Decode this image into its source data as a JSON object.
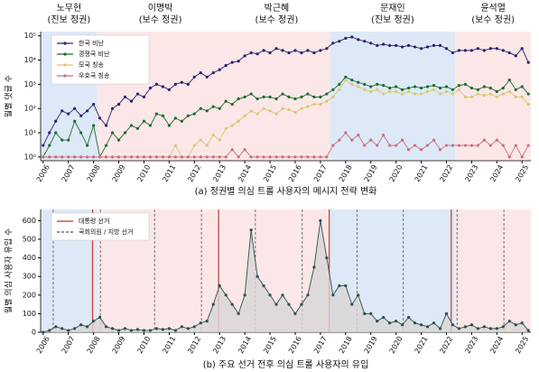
{
  "chart_data": [
    {
      "type": "line",
      "log_y": true,
      "caption": "(a) 정권별 의심 트롤 사용자의 메시지 전략 변화",
      "ylabel": "월별 댓글 수",
      "xlim": [
        2005.9,
        2025.35
      ],
      "xticks": [
        2006,
        2007,
        2008,
        2009,
        2010,
        2011,
        2012,
        2013,
        2014,
        2015,
        2016,
        2017,
        2018,
        2019,
        2020,
        2021,
        2022,
        2023,
        2024,
        2025
      ],
      "ylim": [
        0.7,
        150000
      ],
      "yticks": [
        {
          "value": 1,
          "label": "10⁰"
        },
        {
          "value": 10,
          "label": "10¹"
        },
        {
          "value": 100,
          "label": "10²"
        },
        {
          "value": 1000,
          "label": "10³"
        },
        {
          "value": 10000,
          "label": "10⁴"
        },
        {
          "value": 100000,
          "label": "10⁵"
        }
      ],
      "legend": "upper left",
      "eras": [
        {
          "name": "노무현",
          "party": "(진보 정권)",
          "start": 2005.9,
          "end": 2008.15,
          "color": "#dde9f6"
        },
        {
          "name": "이명박",
          "party": "(보수 정권)",
          "start": 2008.15,
          "end": 2013.15,
          "color": "#fbe7e7"
        },
        {
          "name": "박근혜",
          "party": "(보수 정권)",
          "start": 2013.15,
          "end": 2017.38,
          "color": "#fbe7e7"
        },
        {
          "name": "문재인",
          "party": "(진보 정권)",
          "start": 2017.38,
          "end": 2022.35,
          "color": "#dde9f6"
        },
        {
          "name": "윤석열",
          "party": "(보수 정권)",
          "start": 2022.35,
          "end": 2025.35,
          "color": "#fbe7e7"
        }
      ],
      "x": [
        2006,
        2006.25,
        2006.5,
        2006.75,
        2007,
        2007.25,
        2007.5,
        2007.75,
        2008,
        2008.25,
        2008.5,
        2008.75,
        2009,
        2009.25,
        2009.5,
        2009.75,
        2010,
        2010.25,
        2010.5,
        2010.75,
        2011,
        2011.25,
        2011.5,
        2011.75,
        2012,
        2012.25,
        2012.5,
        2012.75,
        2013,
        2013.25,
        2013.5,
        2013.75,
        2014,
        2014.25,
        2014.5,
        2014.75,
        2015,
        2015.25,
        2015.5,
        2015.75,
        2016,
        2016.25,
        2016.5,
        2016.75,
        2017,
        2017.25,
        2017.5,
        2017.75,
        2018,
        2018.25,
        2018.5,
        2018.75,
        2019,
        2019.25,
        2019.5,
        2019.75,
        2020,
        2020.25,
        2020.5,
        2020.75,
        2021,
        2021.25,
        2021.5,
        2021.75,
        2022,
        2022.25,
        2022.5,
        2022.75,
        2023,
        2023.25,
        2023.5,
        2023.75,
        2024,
        2024.25,
        2024.5,
        2024.75,
        2025,
        2025.25
      ],
      "series": [
        {
          "name": "한국 비난",
          "color": "#2b2170",
          "values": [
            3,
            10,
            30,
            80,
            60,
            100,
            50,
            80,
            150,
            40,
            20,
            100,
            150,
            300,
            200,
            400,
            300,
            700,
            1000,
            800,
            600,
            1000,
            1200,
            1000,
            2000,
            3000,
            2000,
            3000,
            4000,
            6000,
            8000,
            9000,
            15000,
            20000,
            18000,
            25000,
            20000,
            30000,
            25000,
            20000,
            25000,
            20000,
            25000,
            20000,
            25000,
            30000,
            50000,
            60000,
            80000,
            90000,
            70000,
            60000,
            50000,
            40000,
            45000,
            40000,
            40000,
            35000,
            40000,
            35000,
            30000,
            35000,
            40000,
            40000,
            30000,
            20000,
            25000,
            25000,
            25000,
            30000,
            25000,
            30000,
            30000,
            25000,
            20000,
            15000,
            30000,
            8000
          ]
        },
        {
          "name": "경쟁국 비난",
          "color": "#1f6b30",
          "values": [
            1,
            3,
            10,
            5,
            5,
            30,
            10,
            3,
            20,
            1,
            3,
            10,
            5,
            10,
            20,
            15,
            30,
            20,
            60,
            50,
            20,
            40,
            30,
            50,
            60,
            100,
            80,
            120,
            100,
            200,
            150,
            250,
            300,
            400,
            250,
            300,
            300,
            250,
            400,
            300,
            250,
            300,
            400,
            300,
            300,
            400,
            600,
            1000,
            2000,
            1500,
            1200,
            1000,
            800,
            1000,
            900,
            700,
            800,
            600,
            700,
            800,
            700,
            800,
            900,
            700,
            800,
            600,
            900,
            1000,
            700,
            600,
            800,
            700,
            500,
            700,
            1500,
            600,
            800,
            400
          ]
        },
        {
          "name": "모국 칭송",
          "color": "#d9c873",
          "values": [
            1,
            1,
            1,
            1,
            1,
            1,
            1,
            1,
            1,
            1,
            1,
            1,
            1,
            1,
            1,
            1,
            1,
            1,
            1,
            1,
            1,
            3,
            1,
            1,
            3,
            5,
            3,
            8,
            5,
            15,
            20,
            30,
            50,
            80,
            60,
            100,
            80,
            60,
            100,
            90,
            70,
            100,
            120,
            150,
            150,
            200,
            300,
            600,
            1500,
            1000,
            800,
            600,
            500,
            600,
            400,
            500,
            500,
            400,
            500,
            400,
            400,
            500,
            600,
            400,
            500,
            400,
            600,
            300,
            300,
            400,
            350,
            400,
            300,
            400,
            500,
            300,
            300,
            150
          ]
        },
        {
          "name": "우호국 칭송",
          "color": "#c86f80",
          "values": [
            1,
            1,
            1,
            1,
            1,
            1,
            1,
            1,
            1,
            1,
            1,
            1,
            1,
            1,
            1,
            1,
            1,
            1,
            1,
            1,
            1,
            1,
            1,
            1,
            1,
            1,
            1,
            1,
            1,
            1,
            2,
            1,
            2,
            1,
            1,
            1,
            1,
            1,
            1,
            1,
            1,
            1,
            1,
            1,
            1,
            1,
            3,
            5,
            10,
            5,
            8,
            3,
            5,
            3,
            8,
            3,
            3,
            5,
            2,
            3,
            2,
            3,
            5,
            2,
            3,
            3,
            3,
            3,
            3,
            3,
            5,
            3,
            5,
            3,
            1,
            3,
            1,
            3
          ]
        }
      ]
    },
    {
      "type": "area",
      "log_y": false,
      "caption": "(b) 주요 선거 전후 의심 트롤 사용자의 유입",
      "ylabel": "월별 의심 사용자 유입 수",
      "xlim": [
        2005.9,
        2025.35
      ],
      "xticks": [
        2006,
        2007,
        2008,
        2009,
        2010,
        2011,
        2012,
        2013,
        2014,
        2015,
        2016,
        2017,
        2018,
        2019,
        2020,
        2021,
        2022,
        2023,
        2024,
        2025
      ],
      "ylim": [
        0,
        660
      ],
      "yticks": [
        0,
        100,
        200,
        300,
        400,
        500,
        600
      ],
      "legend": "upper left",
      "eras": [
        {
          "start": 2005.9,
          "end": 2008.15,
          "color": "#dde9f6"
        },
        {
          "start": 2008.15,
          "end": 2017.38,
          "color": "#fbe7e7"
        },
        {
          "start": 2017.38,
          "end": 2022.35,
          "color": "#dde9f6"
        },
        {
          "start": 2022.35,
          "end": 2025.35,
          "color": "#fbe7e7"
        }
      ],
      "election_lines": [
        {
          "name": "대통령 선거",
          "color": "#c0392b",
          "dashed": false,
          "dates": [
            2007.96,
            2012.96,
            2017.35,
            2022.19
          ]
        },
        {
          "name": "국회의원 / 지방 선거",
          "color": "#555555",
          "dashed": true,
          "dates": [
            2006.4,
            2008.27,
            2010.42,
            2012.28,
            2014.42,
            2016.28,
            2018.45,
            2020.29,
            2022.42,
            2024.28
          ]
        }
      ],
      "x": [
        2006,
        2006.25,
        2006.5,
        2006.75,
        2007,
        2007.25,
        2007.5,
        2007.75,
        2008,
        2008.25,
        2008.5,
        2008.75,
        2009,
        2009.25,
        2009.5,
        2009.75,
        2010,
        2010.25,
        2010.5,
        2010.75,
        2011,
        2011.25,
        2011.5,
        2011.75,
        2012,
        2012.25,
        2012.5,
        2012.75,
        2013,
        2013.25,
        2013.5,
        2013.75,
        2014,
        2014.25,
        2014.5,
        2014.75,
        2015,
        2015.25,
        2015.5,
        2015.75,
        2016,
        2016.25,
        2016.5,
        2016.75,
        2017,
        2017.25,
        2017.5,
        2017.75,
        2018,
        2018.25,
        2018.5,
        2018.75,
        2019,
        2019.25,
        2019.5,
        2019.75,
        2020,
        2020.25,
        2020.5,
        2020.75,
        2021,
        2021.25,
        2021.5,
        2021.75,
        2022,
        2022.25,
        2022.5,
        2022.75,
        2023,
        2023.25,
        2023.5,
        2023.75,
        2024,
        2024.25,
        2024.5,
        2024.75,
        2025,
        2025.25
      ],
      "color": "#2d4f4f",
      "fill": "#d9d6d6",
      "values": [
        0,
        10,
        30,
        20,
        10,
        20,
        40,
        30,
        60,
        80,
        30,
        20,
        10,
        20,
        10,
        15,
        10,
        10,
        20,
        15,
        20,
        10,
        30,
        20,
        30,
        50,
        60,
        150,
        250,
        200,
        150,
        100,
        200,
        550,
        300,
        250,
        200,
        150,
        200,
        150,
        100,
        150,
        200,
        350,
        600,
        400,
        200,
        250,
        250,
        150,
        200,
        100,
        100,
        60,
        80,
        50,
        60,
        40,
        80,
        50,
        40,
        30,
        50,
        20,
        100,
        40,
        20,
        30,
        40,
        20,
        30,
        20,
        20,
        30,
        60,
        40,
        50,
        10
      ]
    }
  ]
}
